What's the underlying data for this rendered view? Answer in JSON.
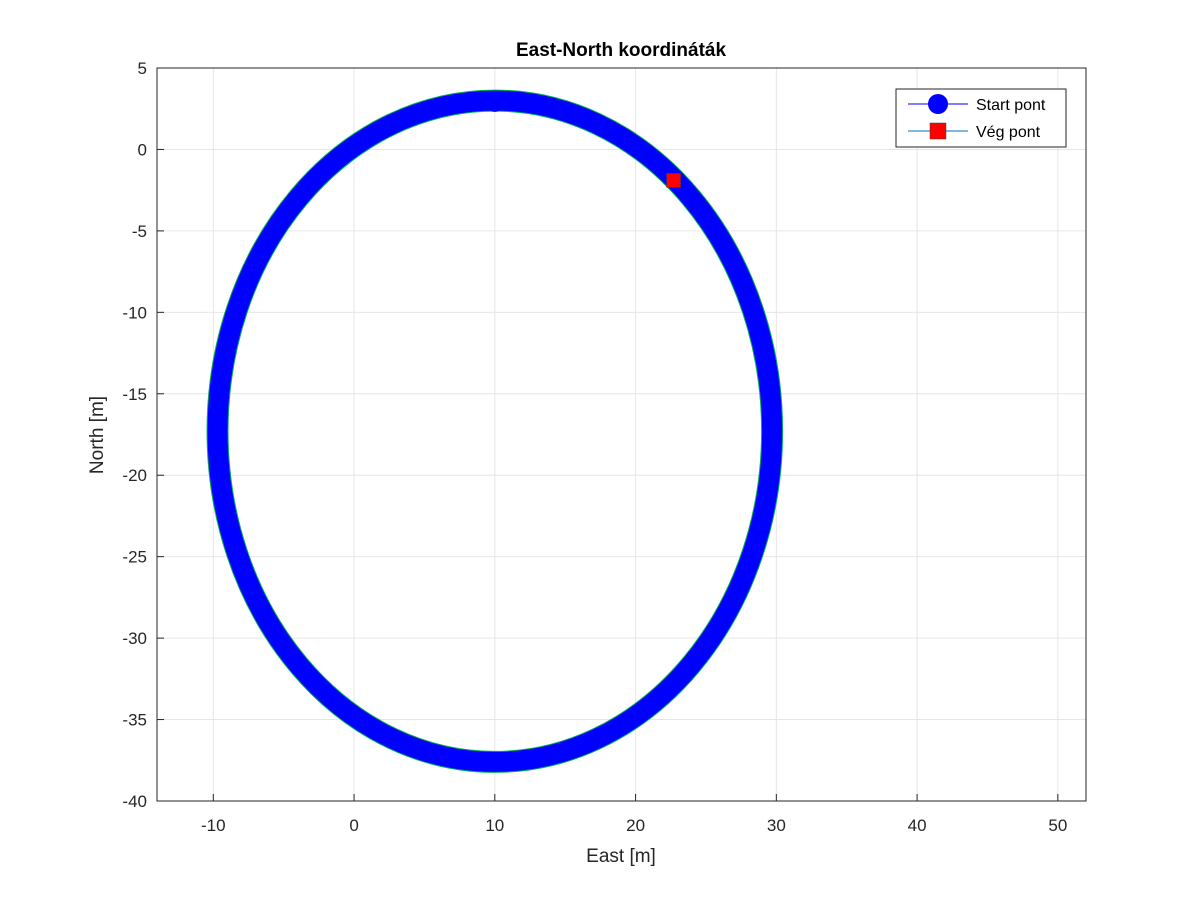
{
  "chart_data": {
    "type": "line",
    "title": "East-North koordináták",
    "xlabel": "East [m]",
    "ylabel": "North [m]",
    "xlim": [
      -14,
      52
    ],
    "ylim": [
      -40,
      5
    ],
    "xticks": [
      -10,
      0,
      10,
      20,
      30,
      40,
      50
    ],
    "yticks": [
      5,
      0,
      -5,
      -10,
      -15,
      -20,
      -25,
      -30,
      -35,
      -40
    ],
    "grid": true,
    "legend_position": "top-right",
    "trajectory": {
      "center_east": 10,
      "center_north": -17.3,
      "radius_east": 19.7,
      "radius_north": 20.3,
      "line_color": "#0000ff",
      "outline_color": "#00b050"
    },
    "series": [
      {
        "name": "Start pont",
        "marker": "circle",
        "color": "#0000ff",
        "x": 10,
        "y": 2.8
      },
      {
        "name": "Vég pont",
        "marker": "square",
        "color": "#ff0000",
        "x": 22.7,
        "y": -1.9
      }
    ]
  }
}
